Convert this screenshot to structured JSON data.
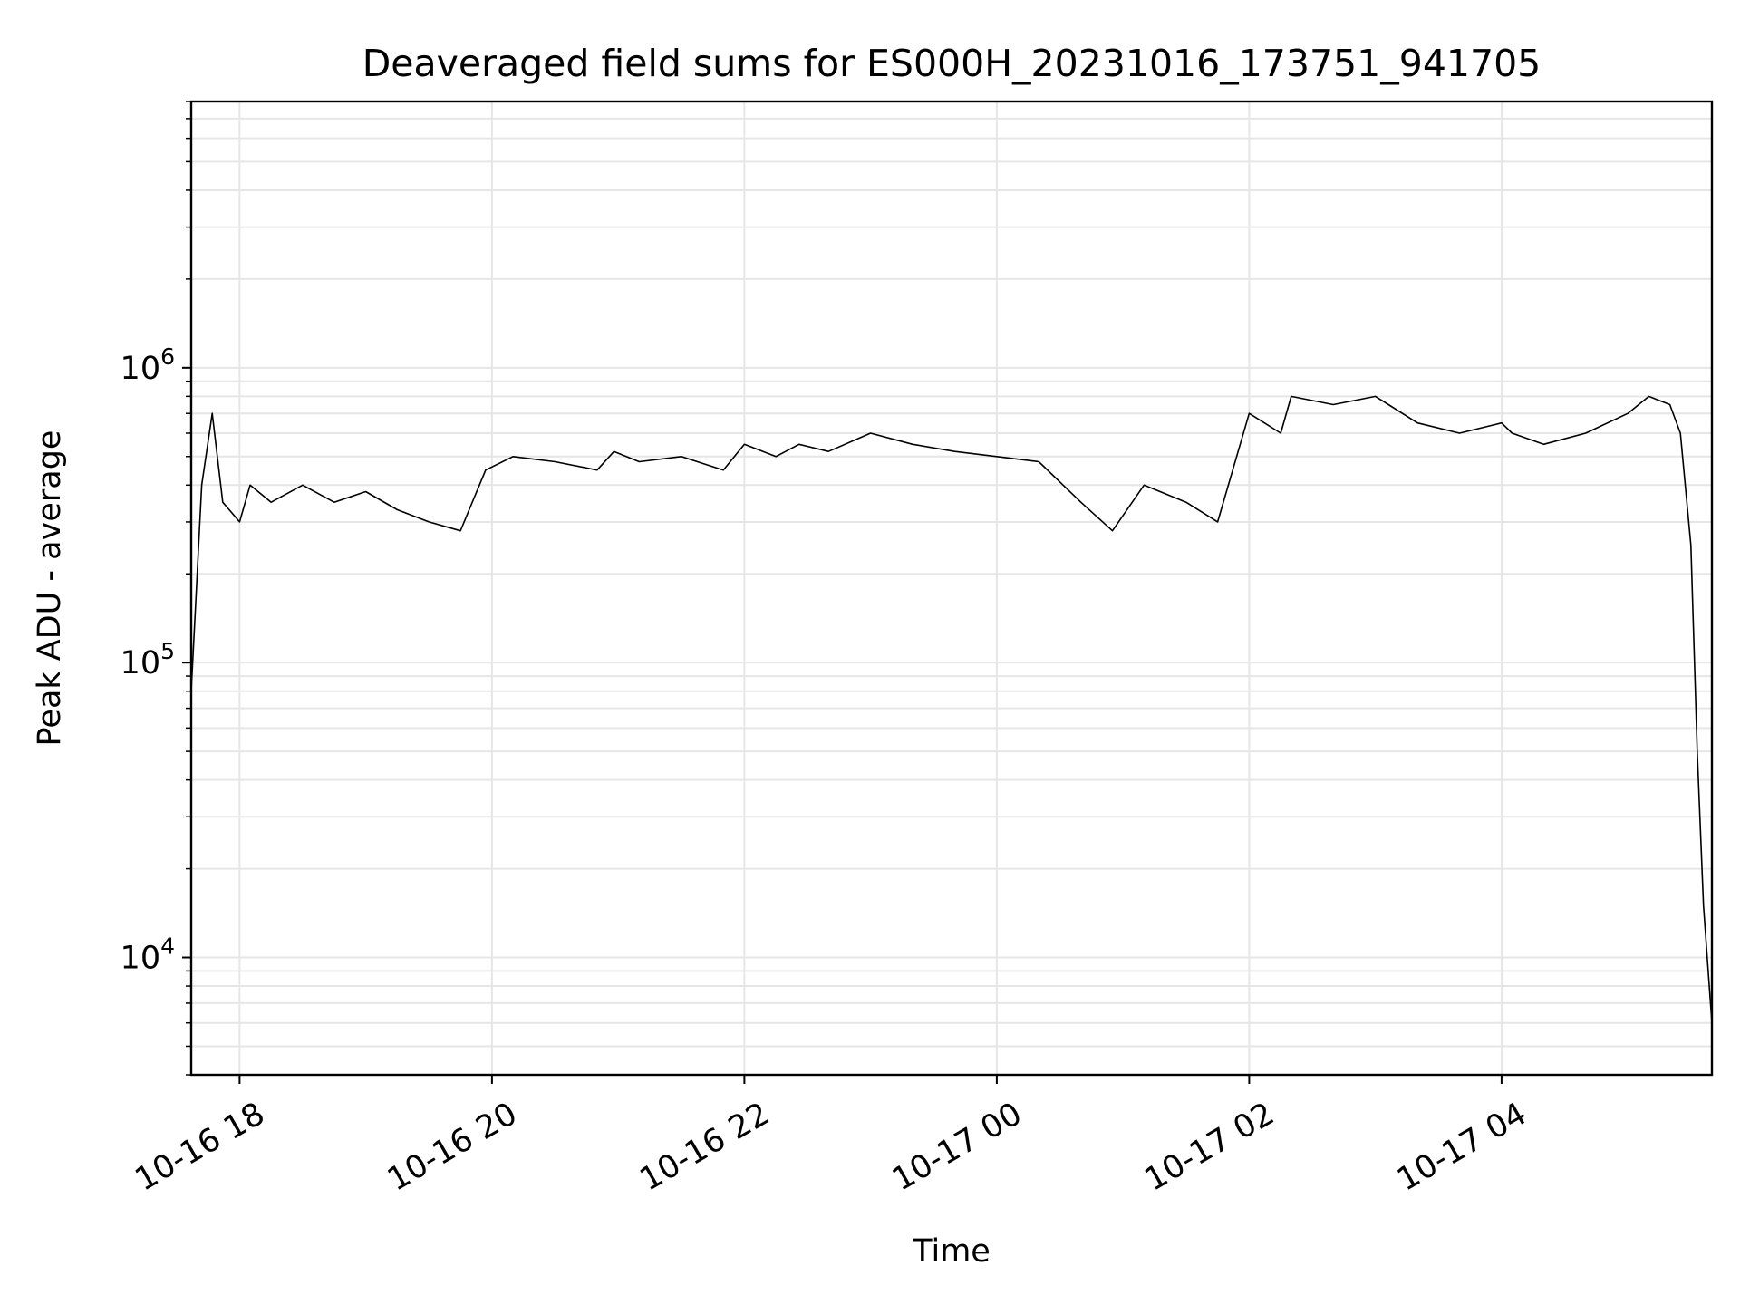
{
  "chart_data": {
    "type": "line",
    "title": "Deaveraged field sums for ES000H_20231016_173751_941705",
    "xlabel": "Time",
    "ylabel": "Peak ADU - average",
    "y_scale": "log",
    "grid": true,
    "x_tick_labels": [
      "10-16 18",
      "10-16 20",
      "10-16 22",
      "10-17 00",
      "10-17 02",
      "10-17 04"
    ],
    "x_ticks": [
      "2023-10-16T18:00",
      "2023-10-16T20:00",
      "2023-10-16T22:00",
      "2023-10-17T00:00",
      "2023-10-17T02:00",
      "2023-10-17T04:00"
    ],
    "xlim": [
      "2023-10-16T17:37",
      "2023-10-17T05:40"
    ],
    "y_ticks": [
      {
        "base": "10",
        "exp": "4",
        "value": 10000
      },
      {
        "base": "10",
        "exp": "5",
        "value": 100000
      },
      {
        "base": "10",
        "exp": "6",
        "value": 1000000
      }
    ],
    "ylim": [
      4000,
      8000000
    ],
    "series": [
      {
        "color": "#000000",
        "x": [
          "2023-10-16T17:37",
          "2023-10-16T17:42",
          "2023-10-16T17:47",
          "2023-10-16T17:52",
          "2023-10-16T18:00",
          "2023-10-16T18:05",
          "2023-10-16T18:15",
          "2023-10-16T18:30",
          "2023-10-16T18:45",
          "2023-10-16T19:00",
          "2023-10-16T19:15",
          "2023-10-16T19:30",
          "2023-10-16T19:45",
          "2023-10-16T19:57",
          "2023-10-16T20:10",
          "2023-10-16T20:30",
          "2023-10-16T20:50",
          "2023-10-16T20:58",
          "2023-10-16T21:10",
          "2023-10-16T21:30",
          "2023-10-16T21:50",
          "2023-10-16T22:00",
          "2023-10-16T22:15",
          "2023-10-16T22:26",
          "2023-10-16T22:40",
          "2023-10-16T23:00",
          "2023-10-16T23:20",
          "2023-10-16T23:40",
          "2023-10-17T00:00",
          "2023-10-17T00:20",
          "2023-10-17T00:40",
          "2023-10-17T00:55",
          "2023-10-17T01:10",
          "2023-10-17T01:30",
          "2023-10-17T01:45",
          "2023-10-17T02:00",
          "2023-10-17T02:15",
          "2023-10-17T02:20",
          "2023-10-17T02:40",
          "2023-10-17T03:00",
          "2023-10-17T03:20",
          "2023-10-17T03:40",
          "2023-10-17T04:00",
          "2023-10-17T04:05",
          "2023-10-17T04:20",
          "2023-10-17T04:40",
          "2023-10-17T05:00",
          "2023-10-17T05:10",
          "2023-10-17T05:20",
          "2023-10-17T05:25",
          "2023-10-17T05:30",
          "2023-10-17T05:33",
          "2023-10-17T05:36",
          "2023-10-17T05:40"
        ],
        "y": [
          80000,
          400000,
          700000,
          350000,
          300000,
          400000,
          350000,
          400000,
          350000,
          380000,
          330000,
          300000,
          280000,
          450000,
          500000,
          480000,
          450000,
          520000,
          480000,
          500000,
          450000,
          550000,
          500000,
          550000,
          520000,
          600000,
          550000,
          520000,
          500000,
          480000,
          350000,
          280000,
          400000,
          350000,
          300000,
          700000,
          600000,
          800000,
          750000,
          800000,
          650000,
          600000,
          650000,
          600000,
          550000,
          600000,
          700000,
          800000,
          750000,
          600000,
          250000,
          50000,
          15000,
          6000
        ]
      }
    ],
    "annotations": []
  }
}
